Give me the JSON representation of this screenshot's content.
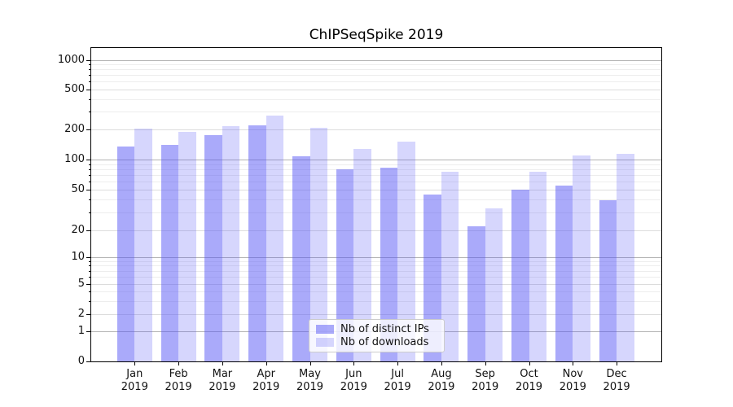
{
  "chart_data": {
    "type": "bar",
    "title": "ChIPSeqSpike 2019",
    "x": {
      "months": [
        "Jan",
        "Feb",
        "Mar",
        "Apr",
        "May",
        "Jun",
        "Jul",
        "Aug",
        "Sep",
        "Oct",
        "Nov",
        "Dec"
      ],
      "year": "2019"
    },
    "series": [
      {
        "name": "Nb of distinct IPs",
        "color": "rgba(85,85,245,0.5)",
        "values": [
          134,
          140,
          175,
          220,
          108,
          80,
          83,
          45,
          22,
          50,
          55,
          39
        ]
      },
      {
        "name": "Nb of downloads",
        "color": "rgba(85,85,245,0.24)",
        "values": [
          204,
          188,
          213,
          274,
          205,
          127,
          150,
          75,
          33,
          75,
          110,
          113
        ]
      }
    ],
    "yaxis": {
      "scale": "symlog",
      "range": [
        0,
        1000
      ],
      "ticks": [
        0,
        1,
        2,
        5,
        10,
        20,
        50,
        100,
        200,
        500,
        1000
      ]
    },
    "grid": {
      "decade_color": "#b3b3b3",
      "sub_color": "#dcdcdc",
      "minor_color": "#ededed",
      "minor_values": [
        3,
        4,
        6,
        7,
        8,
        9,
        30,
        40,
        60,
        70,
        80,
        90,
        300,
        400,
        600,
        700,
        800,
        900
      ],
      "sub_values": [
        2,
        5,
        20,
        50,
        200,
        500
      ],
      "decade_values": [
        1,
        10,
        100,
        1000
      ]
    },
    "legend": {
      "position": "lower-center"
    }
  }
}
